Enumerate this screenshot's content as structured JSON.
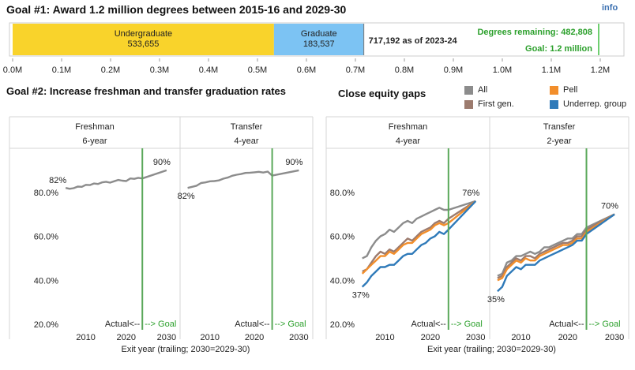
{
  "header": {
    "goal1_title": "Goal #1: Award 1.2 million degrees between 2015-16 and 2029-30",
    "info_link": "info"
  },
  "goal1_bar": {
    "undergrad_label": "Undergraduate",
    "undergrad_value_text": "533,655",
    "undergrad_value": 533655,
    "grad_label": "Graduate",
    "grad_value_text": "183,537",
    "grad_value": 183537,
    "total_text": "717,192 as of 2023-24",
    "total_value": 717192,
    "remaining_text": "Degrees remaining: 482,808",
    "goal_text": "Goal: 1.2 million",
    "goal_value": 1200000,
    "axis_ticks": [
      "0.0M",
      "0.1M",
      "0.2M",
      "0.3M",
      "0.4M",
      "0.5M",
      "0.6M",
      "0.7M",
      "0.8M",
      "0.9M",
      "1.0M",
      "1.1M",
      "1.2M"
    ],
    "undergrad_color": "#f9d32b",
    "grad_color": "#7cc3f3",
    "goal_line_color": "#6fcf70",
    "goal_text_color": "#2ca02c"
  },
  "goal2": {
    "title": "Goal #2: Increase freshman and transfer graduation rates"
  },
  "equity": {
    "title": "Close equity gaps",
    "legend": [
      {
        "name": "All",
        "color": "#8c8c8c"
      },
      {
        "name": "Pell",
        "color": "#f28e2b"
      },
      {
        "name": "First gen.",
        "color": "#9c7b6e"
      },
      {
        "name": "Underrep. group",
        "color": "#2f7ab9"
      }
    ]
  },
  "labels": {
    "actual_text": "Actual<--",
    "goal_text": "--> Goal",
    "x_axis_title": "Exit year (trailing; 2030=2029-30)"
  },
  "colors": {
    "all": "#8c8c8c",
    "pell": "#f28e2b",
    "firstgen": "#9c7b6e",
    "urg": "#2f7ab9",
    "goal_line": "#5aa85a",
    "goal_label": "#2ca02c"
  },
  "chart_data": [
    {
      "type": "bar",
      "title": "Goal #1: Award 1.2 million degrees between 2015-16 and 2029-30",
      "categories": [
        "Undergraduate",
        "Graduate"
      ],
      "values": [
        533655,
        183537
      ],
      "stacked": true,
      "total": 717192,
      "goal": 1200000,
      "xlim": [
        0,
        1200000
      ]
    },
    {
      "type": "line",
      "title": "Goal #2: Increase freshman and transfer graduation rates",
      "panels": [
        {
          "header": "Freshman",
          "subheader": "6-year",
          "series": [
            {
              "name": "All",
              "x": [
                2005,
                2006,
                2007,
                2008,
                2009,
                2010,
                2011,
                2012,
                2013,
                2014,
                2015,
                2016,
                2017,
                2018,
                2019,
                2020,
                2021,
                2022,
                2023,
                2024,
                2030
              ],
              "y": [
                82.0,
                81.6,
                81.9,
                82.6,
                82.5,
                83.4,
                83.3,
                84.0,
                83.8,
                84.5,
                84.8,
                84.4,
                85.0,
                85.6,
                85.3,
                85.1,
                86.3,
                86.1,
                86.6,
                86.3,
                90.0
              ]
            }
          ],
          "start_label": "82%",
          "end_label": "90%"
        },
        {
          "header": "Transfer",
          "subheader": "4-year",
          "series": [
            {
              "name": "All",
              "x": [
                2005,
                2006,
                2007,
                2008,
                2009,
                2010,
                2011,
                2012,
                2013,
                2014,
                2015,
                2016,
                2017,
                2018,
                2019,
                2020,
                2021,
                2022,
                2023,
                2024,
                2030
              ],
              "y": [
                82.0,
                82.5,
                83.0,
                84.2,
                84.5,
                85.0,
                85.1,
                85.4,
                86.2,
                86.7,
                87.5,
                88.0,
                88.3,
                88.8,
                88.9,
                89.1,
                89.3,
                89.0,
                89.4,
                87.6,
                90.0
              ]
            }
          ],
          "start_label": "82%",
          "end_label": "90%"
        }
      ],
      "ylim": [
        20,
        100
      ],
      "yticks": [
        "20.0%",
        "40.0%",
        "60.0%",
        "80.0%"
      ],
      "xticks": [
        "2010",
        "2020",
        "2030"
      ],
      "goal_year": 2024,
      "xlabel": "Exit year (trailing; 2030=2029-30)"
    },
    {
      "type": "line",
      "title": "Close equity gaps",
      "panels": [
        {
          "header": "Freshman",
          "subheader": "4-year",
          "series": [
            {
              "name": "All",
              "x": [
                2005,
                2006,
                2007,
                2008,
                2009,
                2010,
                2011,
                2012,
                2013,
                2014,
                2015,
                2016,
                2017,
                2018,
                2019,
                2020,
                2021,
                2022,
                2023,
                2024,
                2030
              ],
              "y": [
                50,
                51,
                55,
                58,
                60,
                61,
                63,
                62,
                64,
                66,
                67,
                66,
                68,
                69,
                70,
                71,
                72,
                73,
                72,
                72,
                76
              ]
            },
            {
              "name": "First gen.",
              "x": [
                2005,
                2006,
                2007,
                2008,
                2009,
                2010,
                2011,
                2012,
                2013,
                2014,
                2015,
                2016,
                2017,
                2018,
                2019,
                2020,
                2021,
                2022,
                2023,
                2024,
                2030
              ],
              "y": [
                44,
                45,
                48,
                51,
                53,
                52,
                54,
                53,
                55,
                57,
                59,
                58,
                60,
                62,
                63,
                64,
                66,
                67,
                66,
                68,
                76
              ]
            },
            {
              "name": "Pell",
              "x": [
                2005,
                2006,
                2007,
                2008,
                2009,
                2010,
                2011,
                2012,
                2013,
                2014,
                2015,
                2016,
                2017,
                2018,
                2019,
                2020,
                2021,
                2022,
                2023,
                2024,
                2030
              ],
              "y": [
                43,
                45,
                47,
                49,
                51,
                51,
                53,
                52,
                54,
                56,
                57,
                57,
                59,
                61,
                62,
                63,
                65,
                66,
                65,
                66,
                76
              ]
            },
            {
              "name": "Underrep. group",
              "x": [
                2005,
                2006,
                2007,
                2008,
                2009,
                2010,
                2011,
                2012,
                2013,
                2014,
                2015,
                2016,
                2017,
                2018,
                2019,
                2020,
                2021,
                2022,
                2023,
                2024,
                2030
              ],
              "y": [
                37,
                39,
                42,
                44,
                46,
                46,
                47,
                47,
                49,
                51,
                52,
                52,
                54,
                56,
                57,
                59,
                60,
                62,
                61,
                63,
                76
              ]
            }
          ],
          "start_label": "37%",
          "end_label": "76%"
        },
        {
          "header": "Transfer",
          "subheader": "2-year",
          "series": [
            {
              "name": "All",
              "x": [
                2005,
                2006,
                2007,
                2008,
                2009,
                2010,
                2011,
                2012,
                2013,
                2014,
                2015,
                2016,
                2017,
                2018,
                2019,
                2020,
                2021,
                2022,
                2023,
                2024,
                2030
              ],
              "y": [
                42,
                43,
                48,
                49,
                51,
                51,
                52,
                53,
                52,
                53,
                55,
                55,
                56,
                57,
                58,
                59,
                59,
                61,
                61,
                64,
                70
              ]
            },
            {
              "name": "First gen.",
              "x": [
                2005,
                2006,
                2007,
                2008,
                2009,
                2010,
                2011,
                2012,
                2013,
                2014,
                2015,
                2016,
                2017,
                2018,
                2019,
                2020,
                2021,
                2022,
                2023,
                2024,
                2030
              ],
              "y": [
                41,
                42,
                46,
                48,
                50,
                49,
                51,
                51,
                50,
                52,
                53,
                54,
                55,
                56,
                57,
                57,
                58,
                60,
                60,
                63,
                70
              ]
            },
            {
              "name": "Pell",
              "x": [
                2005,
                2006,
                2007,
                2008,
                2009,
                2010,
                2011,
                2012,
                2013,
                2014,
                2015,
                2016,
                2017,
                2018,
                2019,
                2020,
                2021,
                2022,
                2023,
                2024,
                2030
              ],
              "y": [
                40,
                41,
                45,
                47,
                49,
                48,
                50,
                49,
                49,
                51,
                52,
                53,
                54,
                55,
                56,
                56,
                57,
                59,
                59,
                62,
                70
              ]
            },
            {
              "name": "Underrep. group",
              "x": [
                2005,
                2006,
                2007,
                2008,
                2009,
                2010,
                2011,
                2012,
                2013,
                2014,
                2015,
                2016,
                2017,
                2018,
                2019,
                2020,
                2021,
                2022,
                2023,
                2024,
                2030
              ],
              "y": [
                35,
                37,
                42,
                44,
                46,
                45,
                47,
                47,
                47,
                49,
                50,
                51,
                52,
                53,
                54,
                55,
                56,
                58,
                58,
                61,
                70
              ]
            }
          ],
          "start_label": "35%",
          "end_label": "70%"
        }
      ],
      "ylim": [
        20,
        100
      ],
      "yticks": [
        "20.0%",
        "40.0%",
        "60.0%",
        "80.0%"
      ],
      "xticks": [
        "2010",
        "2020",
        "2030"
      ],
      "goal_year": 2024,
      "xlabel": "Exit year (trailing; 2030=2029-30)"
    }
  ]
}
